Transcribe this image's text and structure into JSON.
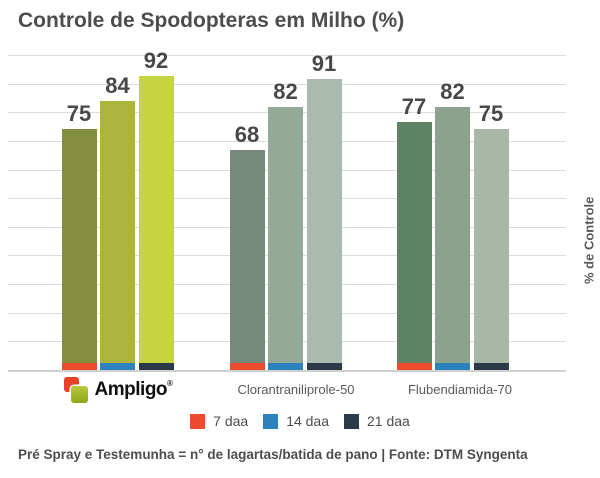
{
  "header": {
    "title": "Controle de Spodopteras em Milho (%)"
  },
  "chart_data": {
    "type": "bar",
    "title": "Controle de Spodopteras em Milho (%)",
    "xlabel": "",
    "ylabel": "% de Controle",
    "ylim": [
      0,
      100
    ],
    "grid": true,
    "legend_position": "bottom",
    "categories": [
      "Ampligo",
      "Clorantraniliprole-50",
      "Flubendiamida-70"
    ],
    "series": [
      {
        "name": "7 daa",
        "color": "#ee4a2d",
        "values": [
          75,
          68,
          77
        ]
      },
      {
        "name": "14 daa",
        "color": "#2d82bd",
        "values": [
          84,
          82,
          82
        ]
      },
      {
        "name": "21 daa",
        "color": "#2a3a49",
        "values": [
          92,
          91,
          75
        ]
      }
    ],
    "group_bar_colors": [
      [
        "#828e3d",
        "#acb43c",
        "#c7d441"
      ],
      [
        "#75897b",
        "#94aa99",
        "#abbaaf"
      ],
      [
        "#5e8264",
        "#8ba38c",
        "#a9b7a7"
      ]
    ]
  },
  "legend": {
    "items": [
      {
        "label": "7 daa",
        "color": "#ee4a2d"
      },
      {
        "label": "14 daa",
        "color": "#2d82bd"
      },
      {
        "label": "21 daa",
        "color": "#2a3a49"
      }
    ]
  },
  "x_labels": {
    "ampligo": {
      "text": "Ampligo",
      "mark": "®"
    }
  },
  "y_axis": {
    "label": "% de Controle"
  },
  "logo_colors": {
    "red": "#e64328",
    "green_top": "#b9c73b",
    "green_bottom": "#8ea817"
  },
  "footnote": "Pré Spray e Testemunha = n° de lagartas/batida de pano | Fonte: DTM Syngenta"
}
